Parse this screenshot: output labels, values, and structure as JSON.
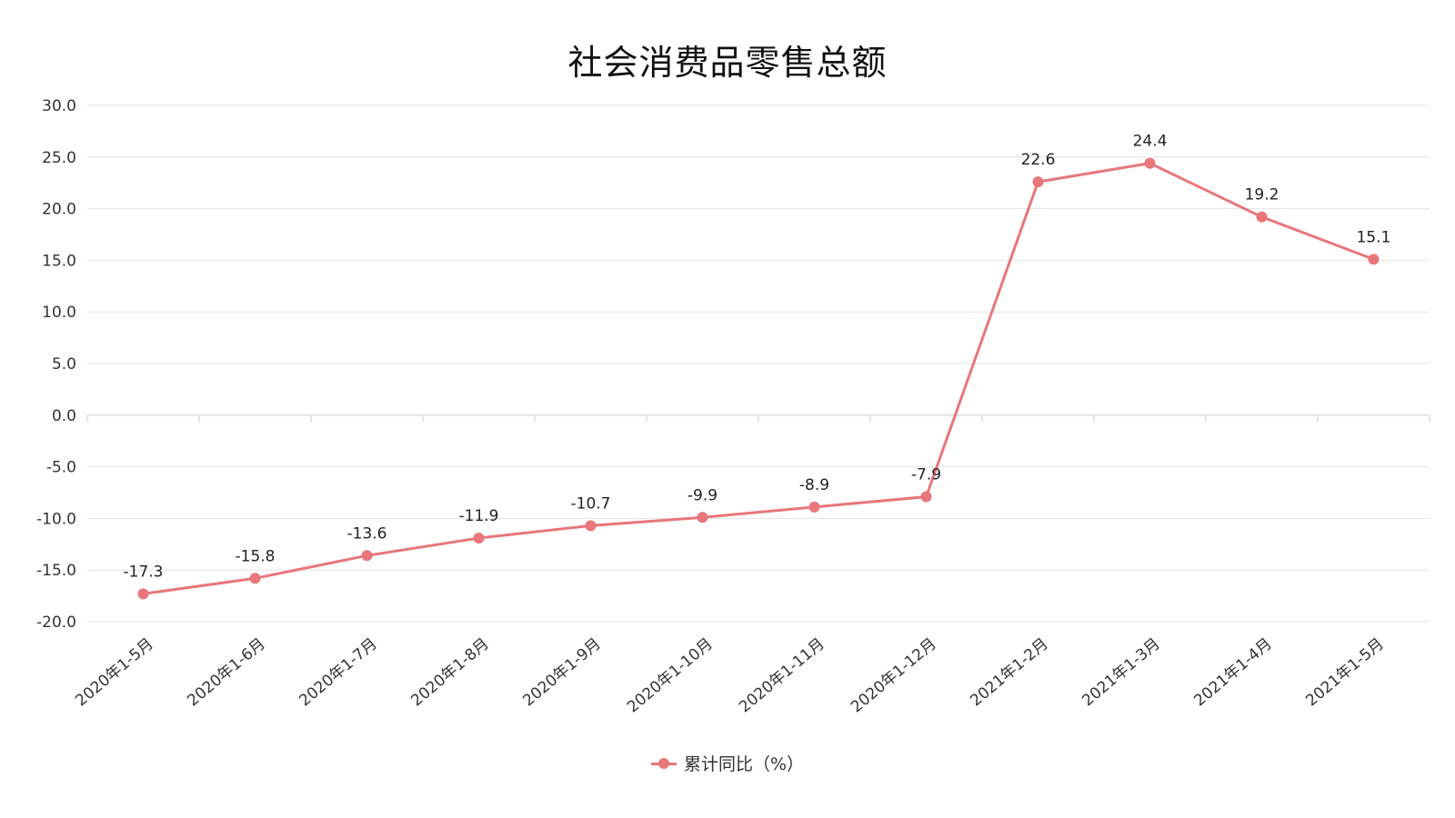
{
  "chart_data": {
    "type": "line",
    "title": "社会消费品零售总额",
    "categories": [
      "2020年1-5月",
      "2020年1-6月",
      "2020年1-7月",
      "2020年1-8月",
      "2020年1-9月",
      "2020年1-10月",
      "2020年1-11月",
      "2020年1-12月",
      "2021年1-2月",
      "2021年1-3月",
      "2021年1-4月",
      "2021年1-5月"
    ],
    "series": [
      {
        "name": "累计同比（%）",
        "values": [
          -17.3,
          -15.8,
          -13.6,
          -11.9,
          -10.7,
          -9.9,
          -8.9,
          -7.9,
          22.6,
          24.4,
          19.2,
          15.1
        ],
        "data_labels": [
          "-17.3",
          "-15.8",
          "-13.6",
          "-11.9",
          "-10.7",
          "-9.9",
          "-8.9",
          "-7.9",
          "22.6",
          "24.4",
          "19.2",
          "15.1"
        ],
        "color": "#E8767A"
      }
    ],
    "y_ticks": [
      "30.0",
      "25.0",
      "20.0",
      "15.0",
      "10.0",
      "5.0",
      "0.0",
      "-5.0",
      "-10.0",
      "-15.0",
      "-20.0"
    ],
    "ylim": [
      -20,
      30
    ],
    "xlabel": "",
    "ylabel": "",
    "grid": true,
    "legend_position": "bottom-center"
  }
}
